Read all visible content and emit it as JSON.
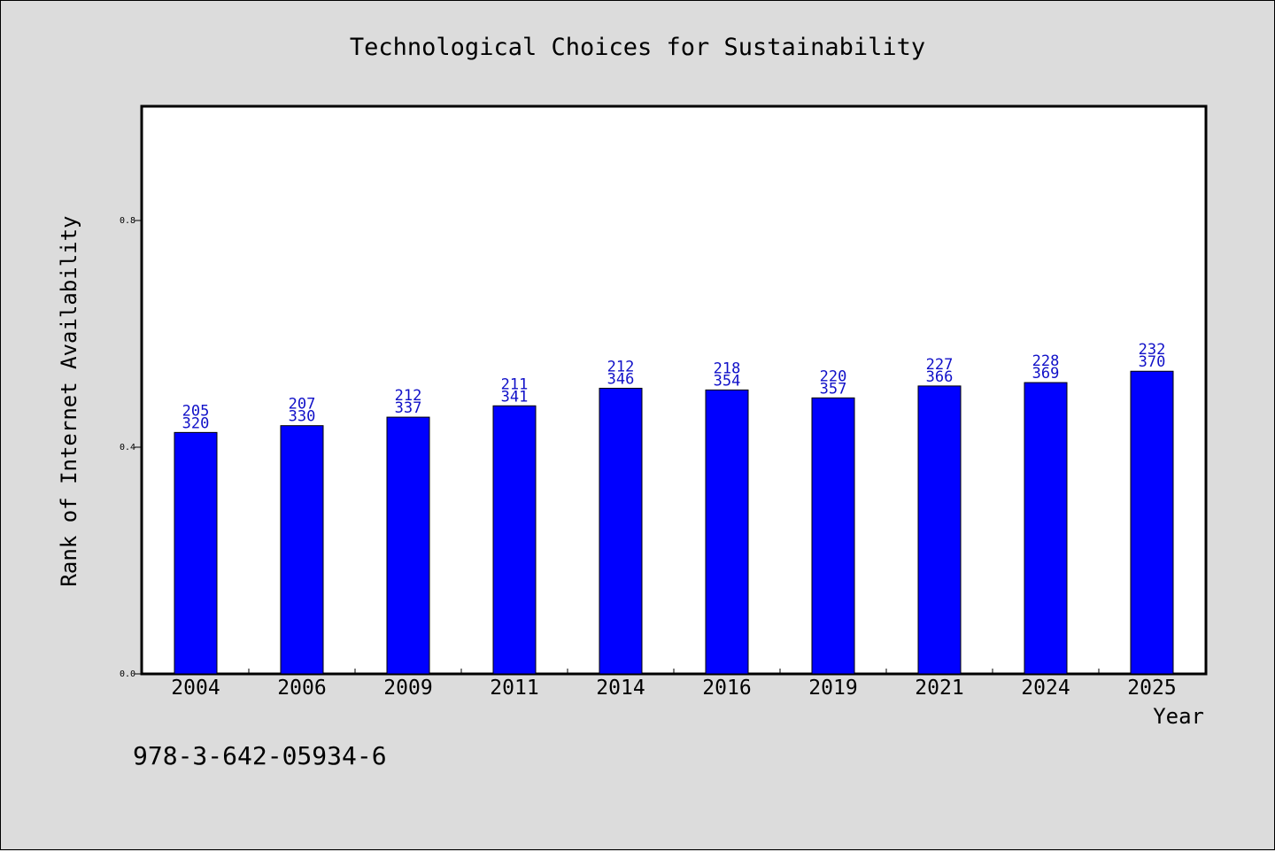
{
  "chart_data": {
    "type": "bar",
    "title": "Technological Choices for Sustainability",
    "xlabel": "Year",
    "ylabel": "Rank of Internet Availability",
    "ylim": [
      0,
      1.0
    ],
    "yticks": [
      "0.0",
      "0.4",
      "0.8"
    ],
    "categories": [
      "2004",
      "2006",
      "2009",
      "2011",
      "2014",
      "2016",
      "2019",
      "2021",
      "2024",
      "2025"
    ],
    "values": [
      0.426,
      0.438,
      0.453,
      0.473,
      0.504,
      0.501,
      0.487,
      0.508,
      0.514,
      0.534
    ],
    "label_top": [
      "205",
      "207",
      "212",
      "211",
      "212",
      "218",
      "220",
      "227",
      "228",
      "232"
    ],
    "label_bottom": [
      "320",
      "330",
      "337",
      "341",
      "346",
      "354",
      "357",
      "366",
      "369",
      "370"
    ],
    "bar_color": "#0000ff",
    "label_color": "#1010c8",
    "grid": false,
    "legend": "none"
  },
  "footer_text": "978-3-642-05934-6"
}
